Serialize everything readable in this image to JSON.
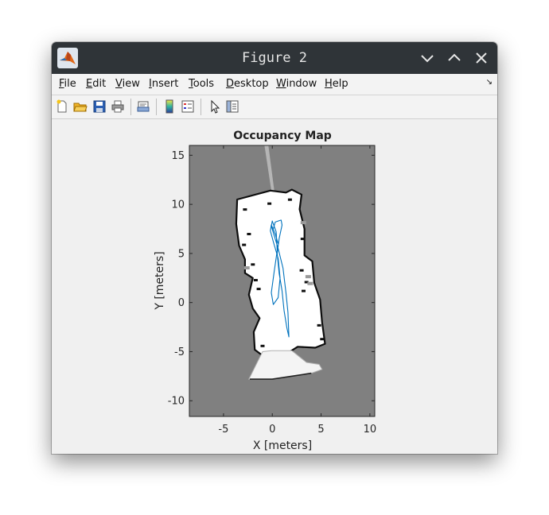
{
  "window": {
    "title": "Figure 2"
  },
  "menu": {
    "items": [
      {
        "label": "File",
        "hot": "F",
        "rest": "ile"
      },
      {
        "label": "Edit",
        "hot": "E",
        "rest": "dit"
      },
      {
        "label": "View",
        "hot": "V",
        "rest": "iew"
      },
      {
        "label": "Insert",
        "hot": "I",
        "rest": "nsert"
      },
      {
        "label": "Tools",
        "hot": "T",
        "rest": "ools"
      },
      {
        "label": "Desktop",
        "hot": "D",
        "rest": "esktop"
      },
      {
        "label": "Window",
        "hot": "W",
        "rest": "indow"
      },
      {
        "label": "Help",
        "hot": "H",
        "rest": "elp"
      }
    ]
  },
  "toolbar": {
    "icons": [
      "new-figure-icon",
      "open-file-icon",
      "save-icon",
      "print-icon",
      "link-plot-icon",
      "colorbar-icon",
      "legend-icon",
      "pointer-icon",
      "property-inspector-icon"
    ]
  },
  "colors": {
    "titlebar": "#2f3438",
    "map_unknown": "#808080",
    "map_free": "#ffffff",
    "map_occupied": "#000000",
    "path": "#0072bd"
  },
  "chart_data": {
    "type": "heatmap",
    "title": "Occupancy Map",
    "xlabel": "X [meters]",
    "ylabel": "Y [meters]",
    "xlim": [
      -8.5,
      10.5
    ],
    "ylim": [
      -11.6,
      16
    ],
    "xticks": [
      -5,
      0,
      5,
      10
    ],
    "yticks": [
      15,
      10,
      5,
      0,
      -5,
      -10
    ],
    "path": {
      "x": [
        0.1,
        0.3,
        0.9,
        1.0,
        0.7,
        0.5,
        0.7,
        1.0,
        1.2,
        1.5,
        1.7,
        1.6,
        1.4,
        1.1,
        0.6,
        0.2,
        -0.1,
        0.0,
        0.4,
        0.5,
        0.2,
        -0.1,
        0.1,
        0.6,
        0.8,
        0.6,
        0.1,
        -0.2,
        -0.1,
        0.3,
        0.6
      ],
      "y": [
        7.5,
        8.2,
        8.4,
        7.9,
        6.5,
        5.0,
        3.0,
        1.2,
        -0.8,
        -2.6,
        -3.5,
        -1.0,
        1.0,
        3.5,
        5.5,
        6.8,
        7.8,
        8.3,
        7.2,
        5.3,
        3.2,
        1.0,
        -0.2,
        0.5,
        2.5,
        4.5,
        6.2,
        7.3,
        7.9,
        7.0,
        6.0
      ]
    }
  }
}
